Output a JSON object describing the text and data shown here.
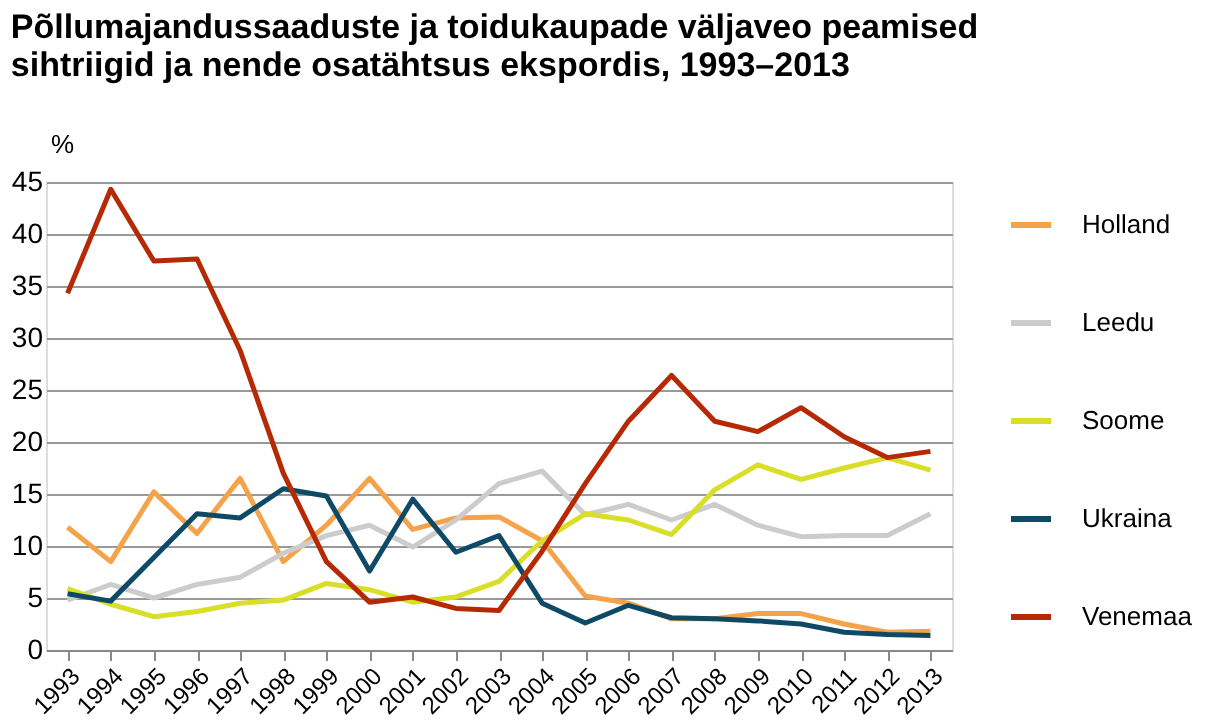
{
  "chart_data": {
    "type": "line",
    "title": "Põllumajandussaaduste ja toidukaupade väljaveo peamised sihtriigid ja nende osatähtsus ekspordis, 1993–2013",
    "ylabel": "%",
    "categories": [
      "1993",
      "1994",
      "1995",
      "1996",
      "1997",
      "1998",
      "1999",
      "2000",
      "2001",
      "2002",
      "2003",
      "2004",
      "2005",
      "2006",
      "2007",
      "2008",
      "2009",
      "2010",
      "2011",
      "2012",
      "2013"
    ],
    "series": [
      {
        "name": "Holland",
        "color": "#f5a34b",
        "values": [
          11.8,
          8.5,
          15.2,
          11.2,
          16.5,
          8.5,
          12,
          16.5,
          11.6,
          12.7,
          12.8,
          10.5,
          5.2,
          4.5,
          3.0,
          3.0,
          3.5,
          3.5,
          2.5,
          1.7,
          1.8
        ]
      },
      {
        "name": "Leedu",
        "color": "#cccccc",
        "values": [
          4.8,
          6.3,
          5.0,
          6.3,
          7.0,
          9.3,
          11,
          12,
          9.9,
          12.5,
          16,
          17.2,
          13,
          14,
          12.5,
          14,
          12,
          10.9,
          11,
          11,
          13.1
        ]
      },
      {
        "name": "Soome",
        "color": "#d9de27",
        "values": [
          5.9,
          4.4,
          3.2,
          3.7,
          4.5,
          4.8,
          6.4,
          5.8,
          4.6,
          5.1,
          6.6,
          10.5,
          13.1,
          12.5,
          11.1,
          15.4,
          17.8,
          16.4,
          17.5,
          18.5,
          17.3
        ]
      },
      {
        "name": "Ukraina",
        "color": "#0e4a66",
        "values": [
          5.4,
          4.7,
          8.9,
          13.1,
          12.7,
          15.5,
          14.8,
          7.6,
          14.5,
          9.4,
          11,
          4.5,
          2.6,
          4.3,
          3.1,
          3.0,
          2.8,
          2.5,
          1.7,
          1.5,
          1.4
        ]
      },
      {
        "name": "Venemaa",
        "color": "#b52a05",
        "values": [
          34.3,
          44.3,
          37.4,
          37.6,
          28.8,
          17,
          8.5,
          4.6,
          5.1,
          4.0,
          3.8,
          9.5,
          16,
          22,
          26.4,
          22,
          21,
          23.3,
          20.5,
          18.5,
          19.1
        ]
      }
    ],
    "ylim": [
      0,
      45
    ],
    "yticks": [
      0,
      5,
      10,
      15,
      20,
      25,
      30,
      35,
      40,
      45
    ],
    "grid": "y",
    "legend": "right",
    "marker": "none",
    "line_style": "solid"
  }
}
